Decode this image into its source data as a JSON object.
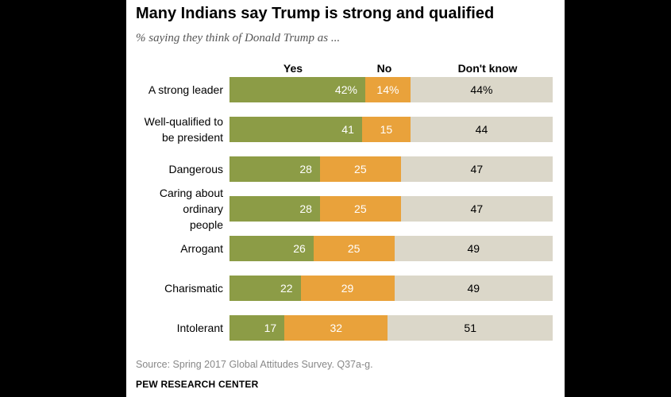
{
  "title": "Many Indians say Trump is strong and qualified",
  "subtitle": "% saying they think of Donald Trump as ...",
  "source": "Source: Spring 2017 Global Attitudes Survey. Q37a-g.",
  "footer": "PEW RESEARCH CENTER",
  "colors": {
    "yes": "#8c9c46",
    "no": "#e9a23b",
    "dont_know": "#dbd7c9"
  },
  "chart_data": {
    "type": "bar",
    "stacked": true,
    "orientation": "horizontal",
    "categories": [
      "A strong leader",
      "Well-qualified to be president",
      "Dangerous",
      "Caring about ordinary people",
      "Arrogant",
      "Charismatic",
      "Intolerant"
    ],
    "category_lines": [
      [
        "A strong leader"
      ],
      [
        "Well-qualified to",
        "be president"
      ],
      [
        "Dangerous"
      ],
      [
        "Caring about",
        "ordinary",
        "people"
      ],
      [
        "Arrogant"
      ],
      [
        "Charismatic"
      ],
      [
        "Intolerant"
      ]
    ],
    "series": [
      {
        "name": "Yes",
        "values": [
          42,
          41,
          28,
          28,
          26,
          22,
          17
        ],
        "labels": [
          "42%",
          "41",
          "28",
          "28",
          "26",
          "22",
          "17"
        ]
      },
      {
        "name": "No",
        "values": [
          14,
          15,
          25,
          25,
          25,
          29,
          32
        ],
        "labels": [
          "14%",
          "15",
          "25",
          "25",
          "25",
          "29",
          "32"
        ]
      },
      {
        "name": "Don't know",
        "values": [
          44,
          44,
          47,
          47,
          49,
          49,
          51
        ],
        "labels": [
          "44%",
          "44",
          "47",
          "47",
          "49",
          "49",
          "51"
        ]
      }
    ]
  }
}
